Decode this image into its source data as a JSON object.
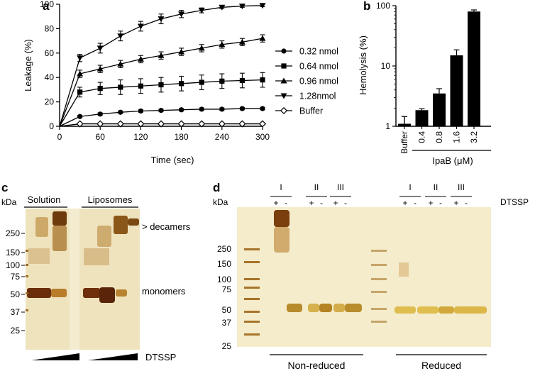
{
  "panel_labels": {
    "a": "a",
    "b": "b",
    "c": "c",
    "d": "d"
  },
  "chart_data": [
    {
      "type": "line",
      "panel": "a",
      "title": "",
      "xlabel": "Time  (sec)",
      "ylabel": "Leakage (%)",
      "xlim": [
        0,
        300
      ],
      "ylim": [
        0,
        100
      ],
      "x_ticks": [
        "0",
        "60",
        "120",
        "180",
        "240",
        "300"
      ],
      "y_ticks": [
        "0",
        "20",
        "40",
        "60",
        "80",
        "100"
      ],
      "legend_position": "right",
      "x": [
        30,
        60,
        90,
        120,
        150,
        180,
        210,
        240,
        270,
        300
      ],
      "series": [
        {
          "name": "0.32 nmol",
          "marker": "circle-filled",
          "values": [
            8,
            10,
            11.5,
            12.5,
            13,
            13.5,
            14,
            14,
            14.5,
            14.5
          ],
          "errors": [
            1,
            1,
            1,
            1,
            1,
            1,
            1,
            1,
            1,
            1
          ]
        },
        {
          "name": "0.64 nmol",
          "marker": "square-filled",
          "values": [
            28,
            31,
            32,
            33,
            34,
            35,
            36,
            37,
            37.5,
            38
          ],
          "errors": [
            4,
            5,
            6,
            6,
            6,
            6,
            6,
            6,
            6,
            6
          ]
        },
        {
          "name": "0.96 nmol",
          "marker": "triangle-up-filled",
          "values": [
            43,
            47,
            51,
            55,
            58,
            61,
            64,
            67,
            69,
            72
          ],
          "errors": [
            3,
            3,
            3,
            3,
            3,
            3,
            3,
            3,
            3,
            3
          ]
        },
        {
          "name": "1.28nmol",
          "marker": "triangle-down-filled",
          "values": [
            56,
            64,
            74,
            82,
            88,
            92,
            95,
            97.5,
            98.5,
            99
          ],
          "errors": [
            3,
            4,
            4,
            4,
            4,
            3,
            2,
            1,
            1,
            1
          ]
        },
        {
          "name": "Buffer",
          "marker": "diamond-open",
          "values": [
            2,
            2,
            2,
            2,
            2,
            2,
            2,
            2,
            2,
            2
          ],
          "errors": [
            0,
            0,
            0,
            0,
            0,
            0,
            0,
            0,
            0,
            0
          ]
        }
      ]
    },
    {
      "type": "bar",
      "panel": "b",
      "title": "",
      "xlabel": "IpaB (μM)",
      "ylabel": "Hemolysis (%)",
      "yscale": "log",
      "ylim": [
        1,
        100
      ],
      "y_ticks": [
        "1",
        "10",
        "100"
      ],
      "categories": [
        "Buffer",
        "0.4",
        "0.8",
        "1.6",
        "3.2"
      ],
      "values": [
        1.1,
        1.85,
        3.5,
        15,
        80
      ],
      "errors": [
        0.35,
        0.1,
        0.7,
        3.5,
        5
      ]
    }
  ],
  "gel_c": {
    "unit_label": "kDa",
    "markers": [
      "250",
      "150",
      "100",
      "75",
      "50",
      "37",
      "25"
    ],
    "group_labels": [
      "Solution",
      "Liposomes"
    ],
    "annotations": [
      "> decamers",
      "monomers"
    ],
    "reagent_label": "DTSSP"
  },
  "gel_d": {
    "unit_label": "kDa",
    "markers": [
      "250",
      "150",
      "100",
      "75",
      "50",
      "37",
      "25"
    ],
    "sample_groups": [
      "I",
      "II",
      "III",
      "I",
      "II",
      "III"
    ],
    "plus_sign": "+",
    "minus_sign": "-",
    "reagent_label": "DTSSP",
    "condition_labels": [
      "Non-reduced",
      "Reduced"
    ]
  }
}
